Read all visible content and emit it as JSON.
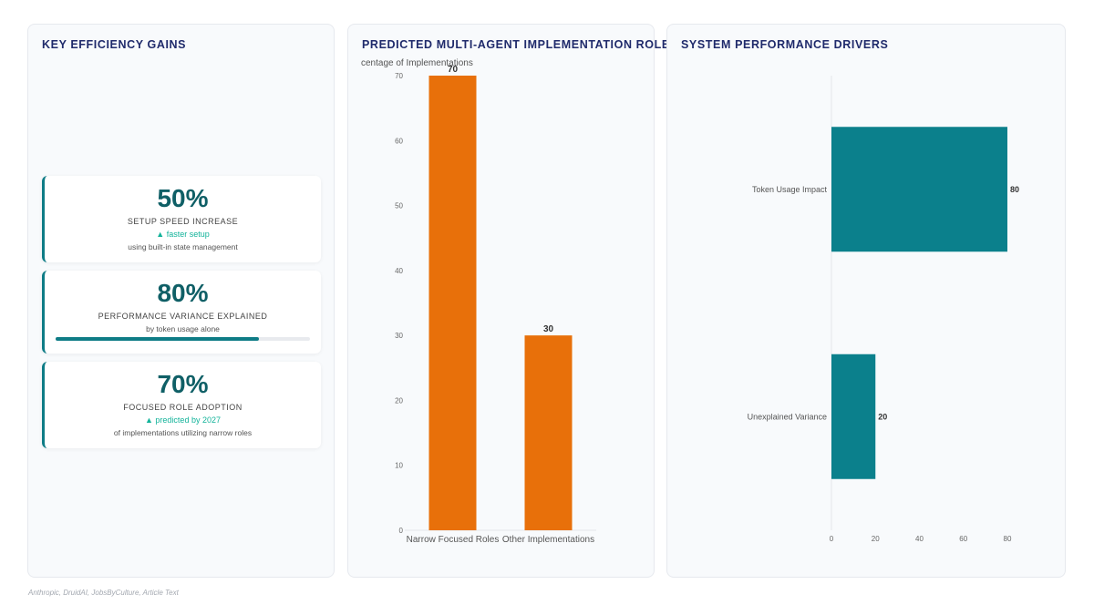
{
  "panels": {
    "kpis_title": "KEY EFFICIENCY GAINS",
    "roles_title": "PREDICTED MULTI-AGENT IMPLEMENTATION ROLES",
    "drivers_title": "SYSTEM PERFORMANCE DRIVERS"
  },
  "kpis": [
    {
      "value": "50%",
      "label": "SETUP SPEED INCREASE",
      "trend": "▲ faster setup",
      "sub": "using built-in state management"
    },
    {
      "value": "80%",
      "label": "PERFORMANCE VARIANCE EXPLAINED",
      "sub": "by token usage alone",
      "progress": 0.8
    },
    {
      "value": "70%",
      "label": "FOCUSED ROLE ADOPTION",
      "trend": "▲ predicted by 2027",
      "sub": "of implementations utilizing narrow roles"
    }
  ],
  "colors": {
    "orange": "#e8700a",
    "teal": "#0b808c",
    "kpi_accent": "#0e7c86"
  },
  "chart_data": [
    {
      "type": "bar",
      "title": "PREDICTED MULTI-AGENT IMPLEMENTATION ROLES",
      "ylabel": "centage of Implementations",
      "categories": [
        "Narrow Focused Roles",
        "Other Implementations"
      ],
      "values": [
        70,
        30
      ],
      "ylim": [
        0,
        70
      ],
      "yticks": [
        0,
        10,
        20,
        30,
        40,
        50,
        60,
        70
      ],
      "grid": false,
      "color": "#e8700a"
    },
    {
      "type": "bar",
      "orientation": "horizontal",
      "title": "SYSTEM PERFORMANCE DRIVERS",
      "categories": [
        "Token Usage Impact",
        "Unexplained Variance"
      ],
      "values": [
        80,
        20
      ],
      "xlim": [
        0,
        80
      ],
      "xticks": [
        0,
        20,
        40,
        60,
        80
      ],
      "grid": false,
      "color": "#0b808c"
    }
  ],
  "source": "Anthropic, DruidAI, JobsByCulture, Article Text"
}
